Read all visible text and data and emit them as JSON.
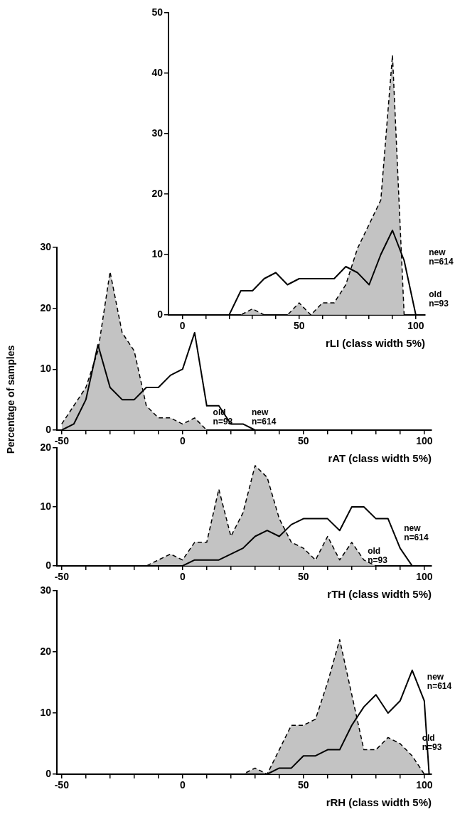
{
  "chart_data": [
    {
      "type": "area",
      "xlabel": "rLI (class width 5%)",
      "xlim": [
        -6,
        104
      ],
      "ylim": [
        0,
        50
      ],
      "yticks": [
        0,
        10,
        20,
        30,
        40,
        50
      ],
      "xticks": [
        0,
        {
          "value": 10,
          "label": null
        },
        {
          "value": 20,
          "label": null
        },
        {
          "value": 30,
          "label": null
        },
        {
          "value": 40,
          "label": null
        },
        50,
        {
          "value": 60,
          "label": null
        },
        {
          "value": 70,
          "label": null
        },
        {
          "value": 80,
          "label": null
        },
        {
          "value": 90,
          "label": null
        },
        100
      ],
      "series": [
        {
          "type": "area",
          "color": "#b8b8b8",
          "line_style": "dashed",
          "x": [
            -5,
            0,
            5,
            10,
            15,
            20,
            25,
            30,
            35,
            40,
            45,
            50,
            55,
            60,
            65,
            70,
            75,
            80,
            85,
            90,
            95,
            100
          ],
          "values": [
            0,
            0,
            0,
            0,
            0,
            0,
            0,
            1,
            0,
            0,
            0,
            2,
            0,
            2,
            2,
            5,
            11,
            15,
            19,
            43,
            0,
            0
          ]
        },
        {
          "type": "line",
          "color": "#000000",
          "line_style": "solid",
          "x": [
            -5,
            0,
            5,
            10,
            15,
            20,
            25,
            30,
            35,
            40,
            45,
            50,
            55,
            60,
            65,
            70,
            75,
            80,
            85,
            90,
            95,
            100
          ],
          "values": [
            0,
            0,
            0,
            0,
            0,
            0,
            4,
            4,
            6,
            7,
            5,
            6,
            6,
            6,
            6,
            8,
            7,
            5,
            10,
            14,
            9,
            0
          ]
        }
      ],
      "annotations": [
        "new\nn=614",
        "old\nn=93"
      ]
    },
    {
      "type": "area",
      "xlabel": "rAT (class width 5%)",
      "ylabel": "Percentage of samples",
      "xlim": [
        -52,
        103
      ],
      "ylim": [
        0,
        30
      ],
      "yticks": [
        0,
        10,
        20,
        30
      ],
      "xticks": [
        -50,
        {
          "value": -40,
          "label": null
        },
        {
          "value": -30,
          "label": null
        },
        {
          "value": -20,
          "label": null
        },
        {
          "value": -10,
          "label": null
        },
        0,
        {
          "value": 10,
          "label": null
        },
        {
          "value": 20,
          "label": null
        },
        {
          "value": 30,
          "label": null
        },
        {
          "value": 40,
          "label": null
        },
        50,
        {
          "value": 60,
          "label": null
        },
        {
          "value": 70,
          "label": null
        },
        {
          "value": 80,
          "label": null
        },
        {
          "value": 90,
          "label": null
        },
        100
      ],
      "series": [
        {
          "type": "area",
          "color": "#b8b8b8",
          "line_style": "dashed",
          "x": [
            -50,
            -45,
            -40,
            -35,
            -30,
            -25,
            -20,
            -15,
            -10,
            -5,
            0,
            5,
            10
          ],
          "values": [
            1,
            4,
            7,
            13,
            26,
            16,
            13,
            4,
            2,
            2,
            1,
            2,
            0
          ]
        },
        {
          "type": "line",
          "color": "#000000",
          "line_style": "solid",
          "x": [
            -50,
            -45,
            -40,
            -35,
            -30,
            -25,
            -20,
            -15,
            -10,
            -5,
            0,
            5,
            10,
            15,
            20,
            25,
            30
          ],
          "values": [
            0,
            1,
            5,
            14,
            7,
            5,
            5,
            7,
            7,
            9,
            10,
            16,
            4,
            4,
            1,
            1,
            0
          ]
        }
      ],
      "annotations": [
        "old\nn=93",
        "new\nn=614"
      ]
    },
    {
      "type": "area",
      "xlabel": "rTH (class width 5%)",
      "xlim": [
        -52,
        103
      ],
      "ylim": [
        0,
        20
      ],
      "yticks": [
        0,
        10,
        20
      ],
      "xticks": [
        -50,
        {
          "value": -40,
          "label": null
        },
        {
          "value": -30,
          "label": null
        },
        {
          "value": -20,
          "label": null
        },
        {
          "value": -10,
          "label": null
        },
        0,
        {
          "value": 10,
          "label": null
        },
        {
          "value": 20,
          "label": null
        },
        {
          "value": 30,
          "label": null
        },
        {
          "value": 40,
          "label": null
        },
        50,
        {
          "value": 60,
          "label": null
        },
        {
          "value": 70,
          "label": null
        },
        {
          "value": 80,
          "label": null
        },
        {
          "value": 90,
          "label": null
        },
        100
      ],
      "series": [
        {
          "type": "area",
          "color": "#b8b8b8",
          "line_style": "dashed",
          "x": [
            -50,
            -45,
            -40,
            -35,
            -30,
            -25,
            -20,
            -15,
            -10,
            -5,
            0,
            5,
            10,
            15,
            20,
            25,
            30,
            35,
            40,
            45,
            50,
            55,
            60,
            65,
            70,
            75,
            80
          ],
          "values": [
            0,
            0,
            0,
            0,
            0,
            0,
            0,
            0,
            1,
            2,
            1,
            4,
            4,
            13,
            5,
            9,
            17,
            15,
            8,
            4,
            3,
            1,
            5,
            1,
            4,
            1,
            0
          ]
        },
        {
          "type": "line",
          "color": "#000000",
          "line_style": "solid",
          "x": [
            -50,
            -45,
            -40,
            -35,
            -30,
            -25,
            -20,
            -15,
            -10,
            -5,
            0,
            5,
            10,
            15,
            20,
            25,
            30,
            35,
            40,
            45,
            50,
            55,
            60,
            65,
            70,
            75,
            80,
            85,
            90,
            95
          ],
          "values": [
            0,
            0,
            0,
            0,
            0,
            0,
            0,
            0,
            0,
            0,
            0,
            1,
            1,
            1,
            2,
            3,
            5,
            6,
            5,
            7,
            8,
            8,
            8,
            6,
            10,
            10,
            8,
            8,
            3,
            0
          ]
        }
      ],
      "annotations": [
        "new\nn=614",
        "old\nn=93"
      ]
    },
    {
      "type": "area",
      "xlabel": "rRH (class width 5%)",
      "xlim": [
        -52,
        103
      ],
      "ylim": [
        0,
        30
      ],
      "yticks": [
        0,
        10,
        20,
        30
      ],
      "xticks": [
        -50,
        {
          "value": -40,
          "label": null
        },
        {
          "value": -30,
          "label": null
        },
        {
          "value": -20,
          "label": null
        },
        {
          "value": -10,
          "label": null
        },
        0,
        {
          "value": 10,
          "label": null
        },
        {
          "value": 20,
          "label": null
        },
        {
          "value": 30,
          "label": null
        },
        {
          "value": 40,
          "label": null
        },
        50,
        {
          "value": 60,
          "label": null
        },
        {
          "value": 70,
          "label": null
        },
        {
          "value": 80,
          "label": null
        },
        {
          "value": 90,
          "label": null
        },
        100
      ],
      "series": [
        {
          "type": "area",
          "color": "#b8b8b8",
          "line_style": "dashed",
          "x": [
            -50,
            -45,
            -40,
            -35,
            -30,
            -25,
            -20,
            -15,
            -10,
            -5,
            0,
            5,
            10,
            15,
            20,
            25,
            30,
            35,
            40,
            45,
            50,
            55,
            60,
            65,
            70,
            75,
            80,
            85,
            90,
            95,
            100
          ],
          "values": [
            0,
            0,
            0,
            0,
            0,
            0,
            0,
            0,
            0,
            0,
            0,
            0,
            0,
            0,
            0,
            0,
            1,
            0,
            4,
            8,
            8,
            9,
            15,
            22,
            13,
            4,
            4,
            6,
            5,
            3,
            0
          ]
        },
        {
          "type": "line",
          "color": "#000000",
          "line_style": "solid",
          "x": [
            -50,
            -45,
            -40,
            -35,
            -30,
            -25,
            -20,
            -15,
            -10,
            -5,
            0,
            5,
            10,
            15,
            20,
            25,
            30,
            35,
            40,
            45,
            50,
            55,
            60,
            65,
            70,
            75,
            80,
            85,
            90,
            95,
            100,
            102
          ],
          "values": [
            0,
            0,
            0,
            0,
            0,
            0,
            0,
            0,
            0,
            0,
            0,
            0,
            0,
            0,
            0,
            0,
            0,
            0,
            1,
            1,
            3,
            3,
            4,
            4,
            8,
            11,
            13,
            10,
            12,
            17,
            12,
            0
          ]
        }
      ],
      "annotations": [
        "new\nn=614",
        "old\nn=93"
      ]
    }
  ]
}
